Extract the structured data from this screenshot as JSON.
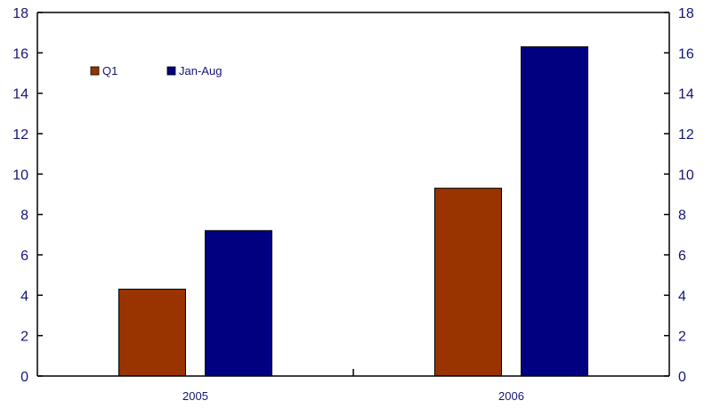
{
  "chart_data": {
    "type": "bar",
    "categories": [
      "2005",
      "2006"
    ],
    "series": [
      {
        "name": "Q1",
        "values": [
          4.3,
          9.3
        ],
        "color": "#993300"
      },
      {
        "name": "Jan-Aug",
        "values": [
          7.2,
          16.3
        ],
        "color": "#000080"
      }
    ],
    "ylim": [
      0,
      18
    ],
    "yticks": [
      0,
      2,
      4,
      6,
      8,
      10,
      12,
      14,
      16,
      18
    ],
    "ytick_labels": [
      "0",
      "2",
      "4",
      "6",
      "8",
      "10",
      "12",
      "14",
      "16",
      "18"
    ],
    "secondary_yticks": [
      0,
      2,
      4,
      6,
      8,
      10,
      12,
      14,
      16,
      18
    ],
    "secondary_ytick_labels": [
      "0",
      "2",
      "4",
      "6",
      "8",
      "10",
      "12",
      "14",
      "16",
      "18"
    ],
    "grid": false,
    "legend_position": "top-left",
    "axis_color": "#000000",
    "text_color": "#14147a"
  }
}
